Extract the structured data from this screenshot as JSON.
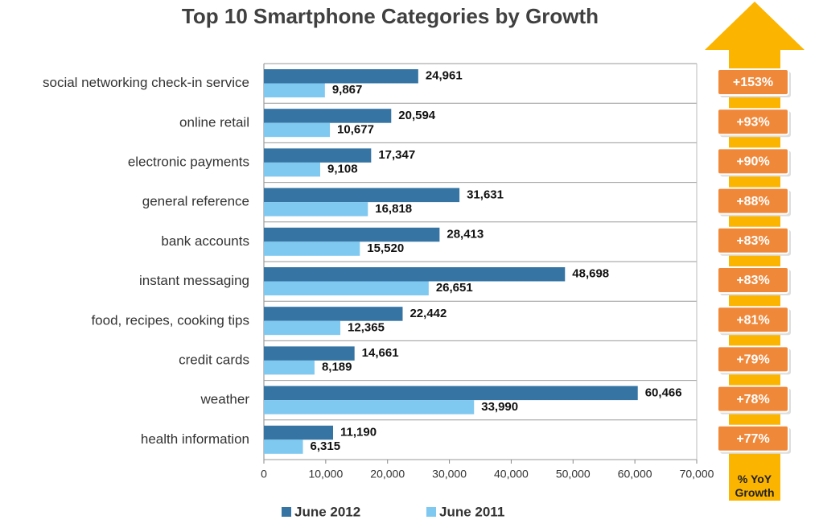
{
  "chart_data": {
    "type": "bar",
    "orientation": "horizontal",
    "title": "Top 10 Smartphone Categories by Growth",
    "categories": [
      "social networking check-in service",
      "online retail",
      "electronic payments",
      "general reference",
      "bank accounts",
      "instant messaging",
      "food, recipes, cooking tips",
      "credit cards",
      "weather",
      "health information"
    ],
    "series": [
      {
        "name": "June 2012",
        "color": "#3574a3",
        "values": [
          24961,
          20594,
          17347,
          31631,
          28413,
          48698,
          22442,
          14661,
          60466,
          11190
        ],
        "value_labels": [
          "24,961",
          "20,594",
          "17,347",
          "31,631",
          "28,413",
          "48,698",
          "22,442",
          "14,661",
          "60,466",
          "11,190"
        ]
      },
      {
        "name": "June 2011",
        "color": "#7fc8f0",
        "values": [
          9867,
          10677,
          9108,
          16818,
          15520,
          26651,
          12365,
          8189,
          33990,
          6315
        ],
        "value_labels": [
          "9,867",
          "10,677",
          "9,108",
          "16,818",
          "15,520",
          "26,651",
          "12,365",
          "8,189",
          "33,990",
          "6,315"
        ]
      }
    ],
    "xlim": [
      0,
      70000
    ],
    "xticks": [
      0,
      {
        "value": 10000,
        "label": "10,000"
      },
      {
        "value": 20000,
        "label": "20,000"
      },
      {
        "value": 30000,
        "label": "30,000"
      },
      {
        "value": 40000,
        "label": "40,000"
      },
      {
        "value": 50000,
        "label": "50,000"
      },
      {
        "value": 60000,
        "label": "60,000"
      },
      {
        "value": 70000,
        "label": "70,000"
      }
    ],
    "yoy_growth": {
      "title": "% YoY Growth",
      "color": "#f0883a",
      "arrow_color": "#fbb400",
      "values": [
        153,
        93,
        90,
        88,
        83,
        83,
        81,
        79,
        78,
        77
      ],
      "value_labels": [
        "+153%",
        "+93%",
        "+90%",
        "+88%",
        "+83%",
        "+83%",
        "+81%",
        "+79%",
        "+78%",
        "+77%"
      ]
    }
  }
}
